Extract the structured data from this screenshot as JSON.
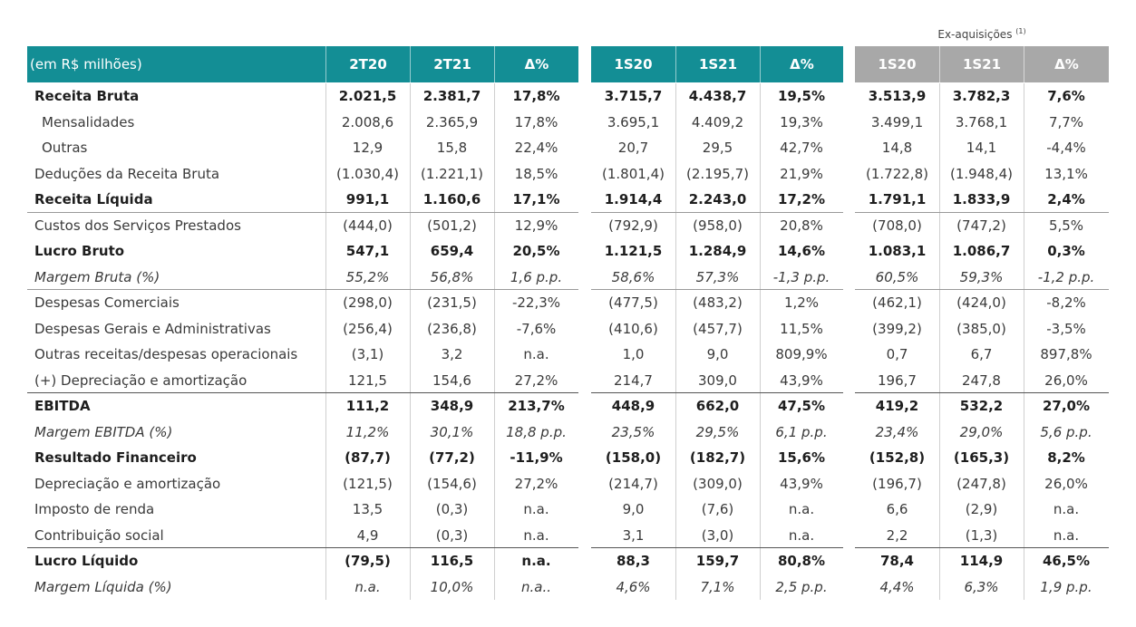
{
  "ex_aquisicoes": {
    "label": "Ex-aquisições",
    "note": "(1)"
  },
  "header": {
    "unit_label": "(em R$ milhões)",
    "block_a": [
      "2T20",
      "2T21",
      "Δ%"
    ],
    "block_b": [
      "1S20",
      "1S21",
      "Δ%"
    ],
    "block_c": [
      "1S20",
      "1S21",
      "Δ%"
    ]
  },
  "colors": {
    "teal": "#138e95",
    "grey": "#a8a8a8"
  },
  "rows": [
    {
      "label": "Receita Bruta",
      "style": "bold",
      "indent": false,
      "line": "none",
      "values": [
        "2.021,5",
        "2.381,7",
        "17,8%",
        "3.715,7",
        "4.438,7",
        "19,5%",
        "3.513,9",
        "3.782,3",
        "7,6%"
      ]
    },
    {
      "label": "Mensalidades",
      "style": "normal",
      "indent": true,
      "line": "none",
      "values": [
        "2.008,6",
        "2.365,9",
        "17,8%",
        "3.695,1",
        "4.409,2",
        "19,3%",
        "3.499,1",
        "3.768,1",
        "7,7%"
      ]
    },
    {
      "label": "Outras",
      "style": "normal",
      "indent": true,
      "line": "none",
      "values": [
        "12,9",
        "15,8",
        "22,4%",
        "20,7",
        "29,5",
        "42,7%",
        "14,8",
        "14,1",
        "-4,4%"
      ]
    },
    {
      "label": "Deduções da Receita Bruta",
      "style": "normal",
      "indent": false,
      "line": "none",
      "values": [
        "(1.030,4)",
        "(1.221,1)",
        "18,5%",
        "(1.801,4)",
        "(2.195,7)",
        "21,9%",
        "(1.722,8)",
        "(1.948,4)",
        "13,1%"
      ]
    },
    {
      "label": "Receita Líquida",
      "style": "bold",
      "indent": false,
      "line": "thin",
      "values": [
        "991,1",
        "1.160,6",
        "17,1%",
        "1.914,4",
        "2.243,0",
        "17,2%",
        "1.791,1",
        "1.833,9",
        "2,4%"
      ]
    },
    {
      "label": "Custos dos Serviços Prestados",
      "style": "normal",
      "indent": false,
      "line": "none",
      "values": [
        "(444,0)",
        "(501,2)",
        "12,9%",
        "(792,9)",
        "(958,0)",
        "20,8%",
        "(708,0)",
        "(747,2)",
        "5,5%"
      ]
    },
    {
      "label": "Lucro Bruto",
      "style": "bold",
      "indent": false,
      "line": "none",
      "values": [
        "547,1",
        "659,4",
        "20,5%",
        "1.121,5",
        "1.284,9",
        "14,6%",
        "1.083,1",
        "1.086,7",
        "0,3%"
      ]
    },
    {
      "label": "Margem Bruta (%)",
      "style": "italic",
      "indent": false,
      "line": "thin",
      "values": [
        "55,2%",
        "56,8%",
        "1,6 p.p.",
        "58,6%",
        "57,3%",
        "-1,3 p.p.",
        "60,5%",
        "59,3%",
        "-1,2 p.p."
      ]
    },
    {
      "label": "Despesas Comerciais",
      "style": "normal",
      "indent": false,
      "line": "none",
      "values": [
        "(298,0)",
        "(231,5)",
        "-22,3%",
        "(477,5)",
        "(483,2)",
        "1,2%",
        "(462,1)",
        "(424,0)",
        "-8,2%"
      ]
    },
    {
      "label": "Despesas Gerais e Administrativas",
      "style": "normal",
      "indent": false,
      "line": "none",
      "values": [
        "(256,4)",
        "(236,8)",
        "-7,6%",
        "(410,6)",
        "(457,7)",
        "11,5%",
        "(399,2)",
        "(385,0)",
        "-3,5%"
      ]
    },
    {
      "label": "Outras receitas/despesas operacionais",
      "style": "normal",
      "indent": false,
      "line": "none",
      "values": [
        "(3,1)",
        "3,2",
        "n.a.",
        "1,0",
        "9,0",
        "809,9%",
        "0,7",
        "6,7",
        "897,8%"
      ]
    },
    {
      "label": "(+) Depreciação e amortização",
      "style": "normal",
      "indent": false,
      "line": "thick",
      "values": [
        "121,5",
        "154,6",
        "27,2%",
        "214,7",
        "309,0",
        "43,9%",
        "196,7",
        "247,8",
        "26,0%"
      ]
    },
    {
      "label": "EBITDA",
      "style": "bold",
      "indent": false,
      "line": "none",
      "values": [
        "111,2",
        "348,9",
        "213,7%",
        "448,9",
        "662,0",
        "47,5%",
        "419,2",
        "532,2",
        "27,0%"
      ]
    },
    {
      "label": "Margem EBITDA (%)",
      "style": "italic",
      "indent": false,
      "line": "none",
      "values": [
        "11,2%",
        "30,1%",
        "18,8 p.p.",
        "23,5%",
        "29,5%",
        "6,1 p.p.",
        "23,4%",
        "29,0%",
        "5,6 p.p."
      ]
    },
    {
      "label": "Resultado Financeiro",
      "style": "bold",
      "indent": false,
      "line": "none",
      "values": [
        "(87,7)",
        "(77,2)",
        "-11,9%",
        "(158,0)",
        "(182,7)",
        "15,6%",
        "(152,8)",
        "(165,3)",
        "8,2%"
      ]
    },
    {
      "label": "Depreciação e amortização",
      "style": "normal",
      "indent": false,
      "line": "none",
      "values": [
        "(121,5)",
        "(154,6)",
        "27,2%",
        "(214,7)",
        "(309,0)",
        "43,9%",
        "(196,7)",
        "(247,8)",
        "26,0%"
      ]
    },
    {
      "label": "Imposto de renda",
      "style": "normal",
      "indent": false,
      "line": "none",
      "values": [
        "13,5",
        "(0,3)",
        "n.a.",
        "9,0",
        "(7,6)",
        "n.a.",
        "6,6",
        "(2,9)",
        "n.a."
      ]
    },
    {
      "label": "Contribuição social",
      "style": "normal",
      "indent": false,
      "line": "thick",
      "values": [
        "4,9",
        "(0,3)",
        "n.a.",
        "3,1",
        "(3,0)",
        "n.a.",
        "2,2",
        "(1,3)",
        "n.a."
      ]
    },
    {
      "label": "Lucro Líquido",
      "style": "bold",
      "indent": false,
      "line": "none",
      "values": [
        "(79,5)",
        "116,5",
        "n.a.",
        "88,3",
        "159,7",
        "80,8%",
        "78,4",
        "114,9",
        "46,5%"
      ]
    },
    {
      "label": "Margem Líquida (%)",
      "style": "italic",
      "indent": false,
      "line": "none",
      "values": [
        "n.a.",
        "10,0%",
        "n.a..",
        "4,6%",
        "7,1%",
        "2,5 p.p.",
        "4,4%",
        "6,3%",
        "1,9 p.p."
      ]
    }
  ]
}
